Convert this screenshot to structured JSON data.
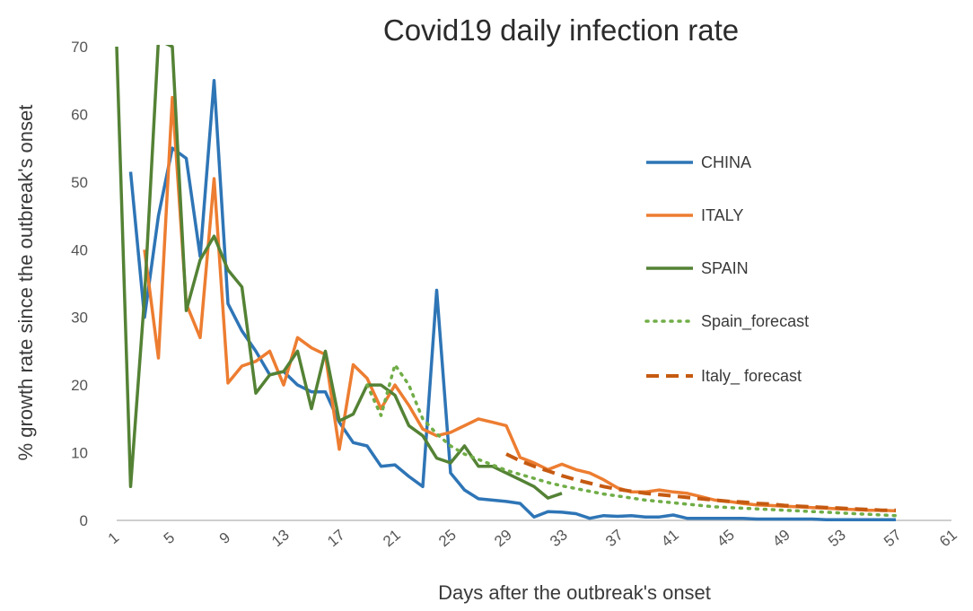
{
  "chart_data": {
    "type": "line",
    "title": "Covid19 daily infection rate",
    "xlabel": "Days after the outbreak's onset",
    "ylabel": "% growth rate since the outbreak's onset",
    "xlim": [
      1,
      61
    ],
    "ylim": [
      0,
      70
    ],
    "xticks": [
      1,
      5,
      9,
      13,
      17,
      21,
      25,
      29,
      33,
      37,
      41,
      45,
      49,
      53,
      57,
      61
    ],
    "yticks": [
      0,
      10,
      20,
      30,
      40,
      50,
      60,
      70
    ],
    "legend_position": "right",
    "series": [
      {
        "name": "CHINA",
        "color": "#2e75b6",
        "style": "solid",
        "x": [
          2,
          3,
          4,
          5,
          6,
          7,
          8,
          9,
          10,
          11,
          12,
          13,
          14,
          15,
          16,
          17,
          18,
          19,
          20,
          21,
          22,
          23,
          24,
          25,
          26,
          27,
          28,
          29,
          30,
          31,
          32,
          33,
          34,
          35,
          36,
          37,
          38,
          39,
          40,
          41,
          42,
          43,
          44,
          45,
          46,
          47,
          48,
          49,
          50,
          51,
          52,
          53,
          54,
          55,
          56,
          57
        ],
        "values": [
          51.5,
          30,
          45,
          55,
          53.5,
          39,
          65,
          32,
          28,
          25,
          21.5,
          22,
          20,
          19,
          19,
          14.5,
          11.5,
          11,
          8,
          8.2,
          6.5,
          5,
          34,
          7,
          4.5,
          3.2,
          3,
          2.8,
          2.5,
          0.5,
          1.3,
          1.2,
          1,
          0.3,
          0.7,
          0.6,
          0.7,
          0.5,
          0.5,
          0.8,
          0.3,
          0.3,
          0.3,
          0.3,
          0.3,
          0.2,
          0.2,
          0.2,
          0.2,
          0.2,
          0.1,
          0.1,
          0.1,
          0.1,
          0.1,
          0.1
        ]
      },
      {
        "name": "ITALY",
        "color": "#ed7d31",
        "style": "solid",
        "x": [
          3,
          4,
          5,
          6,
          7,
          8,
          9,
          10,
          11,
          12,
          13,
          14,
          15,
          16,
          17,
          18,
          19,
          20,
          21,
          22,
          23,
          24,
          25,
          26,
          27,
          28,
          29,
          30,
          31,
          32,
          33,
          34,
          35,
          36,
          37,
          38,
          39,
          40,
          41,
          42,
          43,
          44,
          45,
          46,
          47,
          48,
          49,
          50,
          51,
          52,
          53,
          54,
          55,
          56,
          57
        ],
        "values": [
          40,
          24,
          62.5,
          32,
          27,
          50.5,
          20.3,
          22.8,
          23.5,
          25,
          20,
          27,
          25.5,
          24.5,
          10.5,
          23,
          21,
          16.5,
          20,
          17,
          13.5,
          12.5,
          13,
          14,
          15,
          14.5,
          14,
          9.3,
          8.5,
          7.5,
          8.3,
          7.5,
          7,
          6,
          4.8,
          4.2,
          4.2,
          4.5,
          4.2,
          4,
          3.5,
          3,
          2.8,
          2.5,
          2.3,
          2.2,
          2.1,
          2,
          1.9,
          1.8,
          1.7,
          1.6,
          1.5,
          1.5,
          1.4
        ]
      },
      {
        "name": "SPAIN",
        "color": "#548235",
        "style": "solid",
        "x": [
          1,
          2,
          3,
          4,
          5,
          6,
          7,
          8,
          9,
          10,
          11,
          12,
          13,
          14,
          15,
          16,
          17,
          18,
          19,
          20,
          21,
          22,
          23,
          24,
          25,
          26,
          27,
          28,
          29,
          30,
          31,
          32,
          33
        ],
        "values": [
          70,
          5,
          33,
          71,
          70,
          31,
          38.5,
          42,
          37,
          34.5,
          18.8,
          21.5,
          22,
          25,
          16.5,
          25,
          14.7,
          15.7,
          20,
          20,
          18.5,
          14,
          12.5,
          9.2,
          8.5,
          11,
          8,
          8,
          7,
          6,
          5,
          3.3,
          4
        ]
      },
      {
        "name": "Spain_forecast",
        "color": "#70ad47",
        "style": "dotted",
        "x": [
          19,
          20,
          21,
          22,
          23,
          24,
          25,
          26,
          27,
          28,
          29,
          30,
          31,
          32,
          33,
          34,
          35,
          36,
          37,
          38,
          39,
          40,
          41,
          42,
          43,
          44,
          45,
          46,
          47,
          48,
          49,
          50,
          51,
          52,
          53,
          54,
          55,
          56,
          57
        ],
        "values": [
          20,
          15.5,
          23,
          20,
          15,
          12.8,
          11,
          9.8,
          9,
          8.2,
          7.4,
          6.8,
          6.2,
          5.6,
          5.1,
          4.7,
          4.3,
          3.9,
          3.6,
          3.3,
          3,
          2.8,
          2.6,
          2.4,
          2.2,
          2,
          1.9,
          1.8,
          1.7,
          1.6,
          1.5,
          1.4,
          1.3,
          1.2,
          1.1,
          1,
          0.9,
          0.8,
          0.7
        ]
      },
      {
        "name": "Italy_ forecast",
        "color": "#c55a11",
        "style": "dashed",
        "x": [
          29,
          30,
          31,
          32,
          33,
          34,
          35,
          36,
          37,
          38,
          39,
          40,
          41,
          42,
          43,
          44,
          45,
          46,
          47,
          48,
          49,
          50,
          51,
          52,
          53,
          54,
          55,
          56,
          57
        ],
        "values": [
          9.8,
          8.8,
          8,
          7.3,
          6.6,
          6,
          5.5,
          5,
          4.6,
          4.3,
          4,
          3.8,
          3.6,
          3.4,
          3.2,
          3,
          2.8,
          2.7,
          2.5,
          2.4,
          2.2,
          2.1,
          2,
          1.9,
          1.8,
          1.7,
          1.6,
          1.5,
          1.5
        ]
      }
    ]
  }
}
